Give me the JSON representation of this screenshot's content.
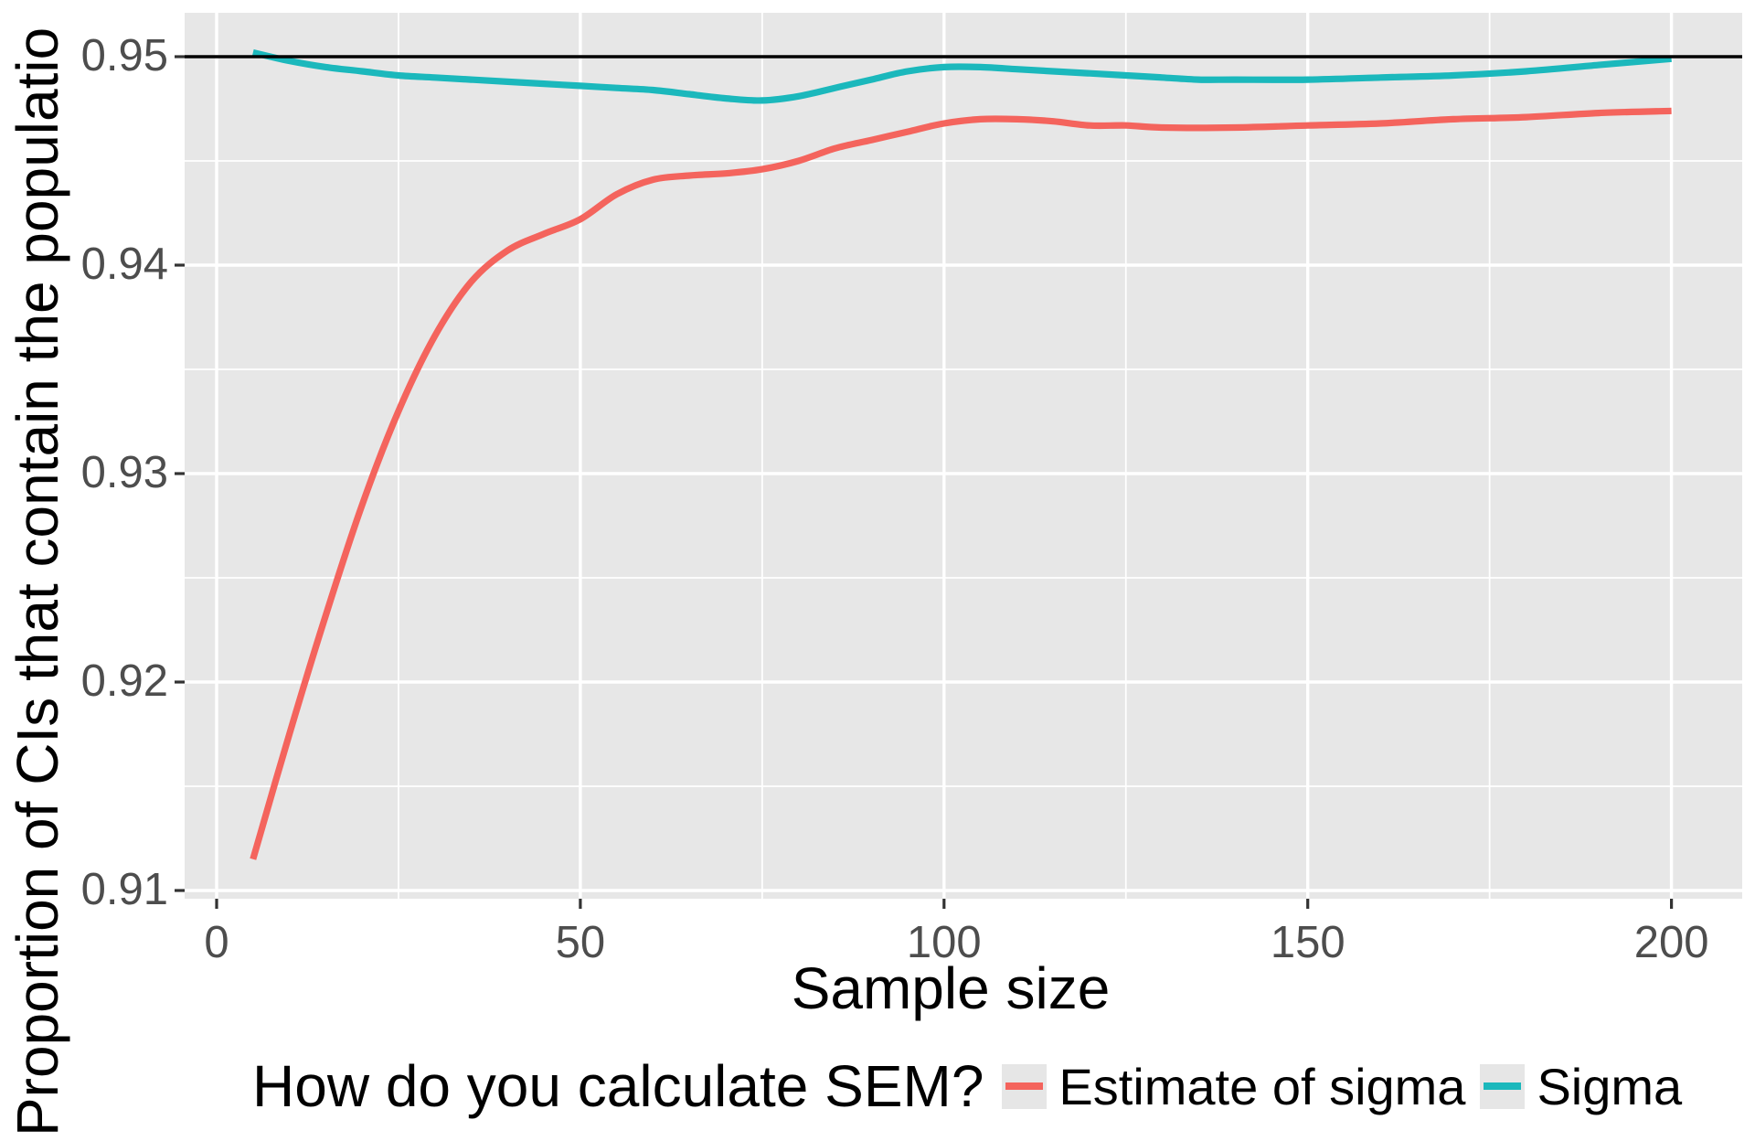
{
  "chart_data": {
    "type": "line",
    "xlabel": "Sample size",
    "ylabel": "Proportion of CIs that contain the populatio",
    "x_tick_labels": [
      "0",
      "50",
      "100",
      "150",
      "200"
    ],
    "x_tick_values": [
      0,
      50,
      100,
      150,
      200
    ],
    "x_minor_ticks": [
      25,
      75,
      125,
      175
    ],
    "y_tick_labels": [
      "0.91",
      "0.92",
      "0.93",
      "0.94",
      "0.95"
    ],
    "y_tick_values": [
      0.91,
      0.92,
      0.93,
      0.94,
      0.95
    ],
    "y_minor_ticks": [
      0.915,
      0.925,
      0.935,
      0.945
    ],
    "xlim": [
      -4.75,
      209.75
    ],
    "ylim": [
      0.9096,
      0.9521
    ],
    "grid": "on-white-over-gray-panel",
    "legend_position": "bottom",
    "hline": 0.95,
    "colors": {
      "panel_background": "#e7e7e7",
      "gridline": "#ffffff",
      "tick_text": "#4d4d4d",
      "tick_mark": "#333333",
      "hline": "#000000",
      "estimate_of_sigma": "#f4645d",
      "sigma": "#1bb8bc",
      "legend_key_background": "#e6e6e6"
    },
    "series": [
      {
        "name": "Estimate of sigma",
        "color": "#f4645d",
        "points": [
          [
            5,
            0.9115
          ],
          [
            10,
            0.9175
          ],
          [
            15,
            0.9232
          ],
          [
            20,
            0.9285
          ],
          [
            25,
            0.933
          ],
          [
            30,
            0.9366
          ],
          [
            35,
            0.9392
          ],
          [
            40,
            0.9407
          ],
          [
            45,
            0.9415
          ],
          [
            50,
            0.9422
          ],
          [
            55,
            0.9434
          ],
          [
            60,
            0.9441
          ],
          [
            65,
            0.9443
          ],
          [
            70,
            0.9444
          ],
          [
            75,
            0.9446
          ],
          [
            80,
            0.945
          ],
          [
            85,
            0.9456
          ],
          [
            90,
            0.946
          ],
          [
            95,
            0.9464
          ],
          [
            100,
            0.9468
          ],
          [
            105,
            0.947
          ],
          [
            110,
            0.947
          ],
          [
            115,
            0.9469
          ],
          [
            120,
            0.9467
          ],
          [
            125,
            0.9467
          ],
          [
            130,
            0.9466
          ],
          [
            140,
            0.9466
          ],
          [
            150,
            0.9467
          ],
          [
            160,
            0.9468
          ],
          [
            170,
            0.947
          ],
          [
            180,
            0.9471
          ],
          [
            190,
            0.9473
          ],
          [
            200,
            0.9474
          ]
        ]
      },
      {
        "name": "Sigma",
        "color": "#1bb8bc",
        "points": [
          [
            5,
            0.9502
          ],
          [
            10,
            0.9498
          ],
          [
            15,
            0.9495
          ],
          [
            20,
            0.9493
          ],
          [
            25,
            0.9491
          ],
          [
            30,
            0.949
          ],
          [
            35,
            0.9489
          ],
          [
            40,
            0.9488
          ],
          [
            45,
            0.9487
          ],
          [
            50,
            0.9486
          ],
          [
            55,
            0.9485
          ],
          [
            60,
            0.9484
          ],
          [
            65,
            0.9482
          ],
          [
            70,
            0.948
          ],
          [
            75,
            0.9479
          ],
          [
            80,
            0.9481
          ],
          [
            85,
            0.9485
          ],
          [
            90,
            0.9489
          ],
          [
            95,
            0.9493
          ],
          [
            100,
            0.9495
          ],
          [
            105,
            0.9495
          ],
          [
            110,
            0.9494
          ],
          [
            115,
            0.9493
          ],
          [
            120,
            0.9492
          ],
          [
            125,
            0.9491
          ],
          [
            130,
            0.949
          ],
          [
            135,
            0.9489
          ],
          [
            140,
            0.9489
          ],
          [
            150,
            0.9489
          ],
          [
            160,
            0.949
          ],
          [
            170,
            0.9491
          ],
          [
            180,
            0.9493
          ],
          [
            190,
            0.9496
          ],
          [
            200,
            0.9499
          ]
        ]
      }
    ],
    "legend": {
      "title": "How do you calculate SEM?",
      "entries": [
        {
          "label": "Estimate of sigma",
          "color": "#f4645d"
        },
        {
          "label": "Sigma",
          "color": "#1bb8bc"
        }
      ]
    }
  }
}
